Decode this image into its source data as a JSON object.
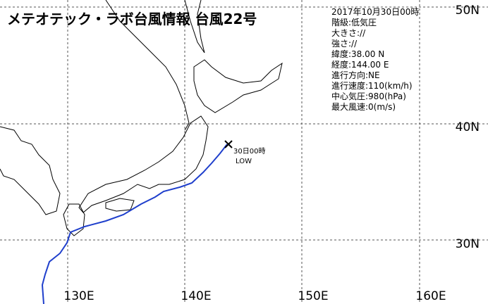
{
  "header": {
    "title": "メテオテック・ラボ台風情報 台風22号"
  },
  "info": [
    "2017年10月30日00時",
    "階級:低気圧",
    "大きさ://",
    "強さ://",
    "緯度:38.00 N",
    "経度:144.00 E",
    "進行方向:NE",
    "進行速度:110(km/h)",
    "中心気圧:980(hPa)",
    "最大風速:0(m/s)"
  ],
  "grid": {
    "lat_labels": [
      "50N",
      "40N",
      "30N"
    ],
    "lon_labels": [
      "130E",
      "140E",
      "150E",
      "160E"
    ]
  },
  "marker": {
    "time": "30日00時",
    "class": "LOW"
  }
}
